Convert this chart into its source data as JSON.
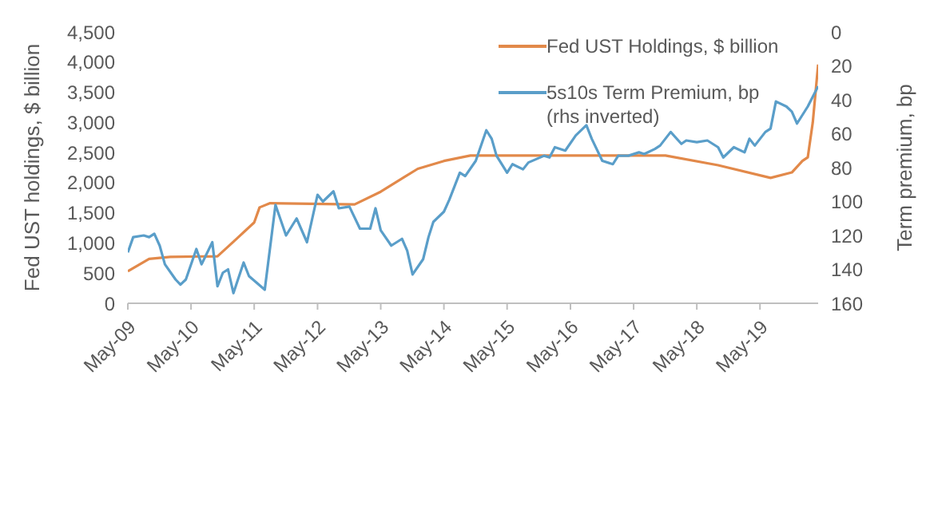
{
  "chart_data": {
    "type": "line",
    "xlabel": null,
    "ylabel": "Fed UST holdings, $ billion",
    "y2label": "Term premium, bp",
    "legend": "top right",
    "marker": "none",
    "line_style": "solid",
    "xlim": [
      "2009-05",
      "2020-04"
    ],
    "xticks": [
      {
        "value": "2009-05",
        "label": "May-09"
      },
      {
        "value": "2010-05",
        "label": "May-10"
      },
      {
        "value": "2011-05",
        "label": "May-11"
      },
      {
        "value": "2012-05",
        "label": "May-12"
      },
      {
        "value": "2013-05",
        "label": "May-13"
      },
      {
        "value": "2014-05",
        "label": "May-14"
      },
      {
        "value": "2015-05",
        "label": "May-15"
      },
      {
        "value": "2016-05",
        "label": "May-16"
      },
      {
        "value": "2017-05",
        "label": "May-17"
      },
      {
        "value": "2018-05",
        "label": "May-18"
      },
      {
        "value": "2019-05",
        "label": "May-19"
      }
    ],
    "ylim": [
      0,
      4500
    ],
    "yticks": [
      {
        "value": 0,
        "label": "0"
      },
      {
        "value": 500,
        "label": "500"
      },
      {
        "value": 1000,
        "label": "1,000"
      },
      {
        "value": 1500,
        "label": "1,500"
      },
      {
        "value": 2000,
        "label": "2,000"
      },
      {
        "value": 2500,
        "label": "2,500"
      },
      {
        "value": 3000,
        "label": "3,000"
      },
      {
        "value": 3500,
        "label": "3,500"
      },
      {
        "value": 4000,
        "label": "4,000"
      },
      {
        "value": 4500,
        "label": "4,500"
      }
    ],
    "y2lim": [
      160,
      0
    ],
    "y2ticks": [
      0,
      20,
      40,
      60,
      80,
      100,
      120,
      140,
      160
    ],
    "series": [
      {
        "name": "Fed UST Holdings, $ billion",
        "color": "#e2894a",
        "x": [
          "2009-05",
          "2009-09",
          "2010-01",
          "2010-10",
          "2011-01",
          "2011-05",
          "2011-06",
          "2011-08",
          "2012-12",
          "2013-05",
          "2013-12",
          "2014-05",
          "2014-10",
          "2017-11",
          "2018-09",
          "2019-07",
          "2019-11",
          "2020-01",
          "2020-02",
          "2020-03",
          "2020-04"
        ],
        "values": [
          530,
          737,
          770,
          780,
          1020,
          1340,
          1590,
          1660,
          1640,
          1850,
          2230,
          2360,
          2450,
          2450,
          2290,
          2080,
          2170,
          2360,
          2420,
          3000,
          3960
        ]
      },
      {
        "name": "5s10s Term Premium, bp (rhs inverted)",
        "color": "#5a9ec9",
        "axis": "y2",
        "x": [
          "2009-05",
          "2009-06",
          "2009-08",
          "2009-09",
          "2009-10",
          "2009-11",
          "2009-12",
          "2010-02",
          "2010-03",
          "2010-04",
          "2010-06",
          "2010-07",
          "2010-09",
          "2010-10",
          "2010-11",
          "2010-12",
          "2011-01",
          "2011-03",
          "2011-04",
          "2011-07",
          "2011-09",
          "2011-11",
          "2012-01",
          "2012-03",
          "2012-05",
          "2012-06",
          "2012-08",
          "2012-09",
          "2012-11",
          "2013-01",
          "2013-03",
          "2013-04",
          "2013-05",
          "2013-07",
          "2013-09",
          "2013-10",
          "2013-11",
          "2014-01",
          "2014-02",
          "2014-03",
          "2014-05",
          "2014-06",
          "2014-08",
          "2014-09",
          "2014-11",
          "2015-01",
          "2015-02",
          "2015-03",
          "2015-05",
          "2015-06",
          "2015-08",
          "2015-09",
          "2015-12",
          "2016-01",
          "2016-02",
          "2016-04",
          "2016-06",
          "2016-08",
          "2016-09",
          "2016-11",
          "2017-01",
          "2017-02",
          "2017-04",
          "2017-06",
          "2017-07",
          "2017-09",
          "2017-10",
          "2017-12",
          "2018-02",
          "2018-03",
          "2018-05",
          "2018-07",
          "2018-09",
          "2018-10",
          "2018-12",
          "2019-02",
          "2019-03",
          "2019-04",
          "2019-06",
          "2019-07",
          "2019-08",
          "2019-10",
          "2019-11",
          "2019-12",
          "2020-02",
          "2020-04"
        ],
        "values": [
          130,
          121,
          120,
          121,
          119,
          126,
          137,
          146,
          149,
          146,
          128,
          137,
          124,
          150,
          142,
          140,
          154,
          136,
          144,
          152,
          102,
          120,
          110,
          124,
          96,
          100,
          94,
          104,
          103,
          116,
          116,
          104,
          117,
          126,
          122,
          129,
          143,
          134,
          121,
          112,
          106,
          99,
          83,
          85,
          76,
          58,
          63,
          73,
          83,
          78,
          81,
          77,
          73,
          74,
          68,
          70,
          61,
          55,
          63,
          76,
          78,
          73,
          73,
          71,
          72,
          69,
          67,
          59,
          66,
          64,
          65,
          64,
          68,
          74,
          68,
          71,
          63,
          67,
          59,
          57,
          41,
          44,
          47,
          54,
          44,
          32
        ]
      }
    ]
  }
}
